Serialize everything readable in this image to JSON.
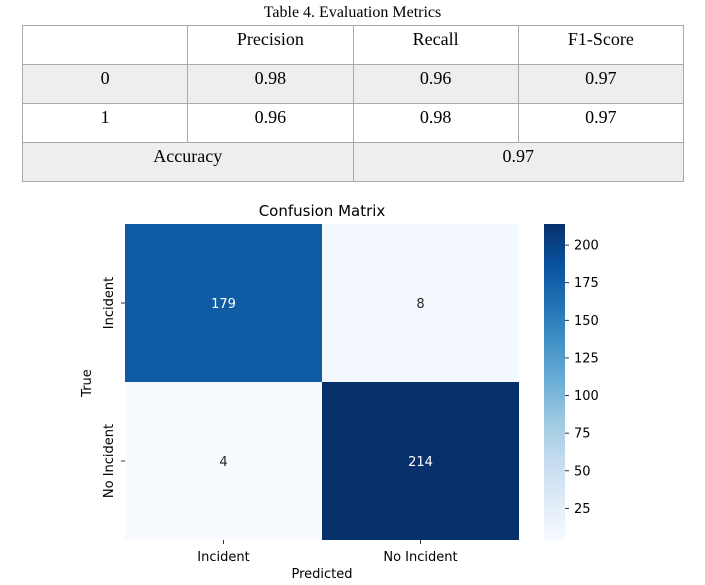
{
  "table": {
    "caption": "Table 4. Evaluation Metrics",
    "headers": [
      "",
      "Precision",
      "Recall",
      "F1-Score"
    ],
    "rows": [
      {
        "label": "0",
        "precision": "0.98",
        "recall": "0.96",
        "f1": "0.97"
      },
      {
        "label": "1",
        "precision": "0.96",
        "recall": "0.98",
        "f1": "0.97"
      }
    ],
    "accuracy_label": "Accuracy",
    "accuracy_value": "0.97"
  },
  "chart_data": {
    "type": "heatmap",
    "title": "Confusion Matrix",
    "xlabel": "Predicted",
    "ylabel": "True",
    "x_categories": [
      "Incident",
      "No Incident"
    ],
    "y_categories": [
      "Incident",
      "No Incident"
    ],
    "values": [
      [
        179,
        8
      ],
      [
        4,
        214
      ]
    ],
    "colormap": "Blues",
    "colorbar": {
      "min": 4,
      "max": 214,
      "ticks": [
        25,
        50,
        75,
        100,
        125,
        150,
        175,
        200
      ]
    },
    "colors": {
      "low": "#f7fbff",
      "high": "#08306b"
    }
  }
}
